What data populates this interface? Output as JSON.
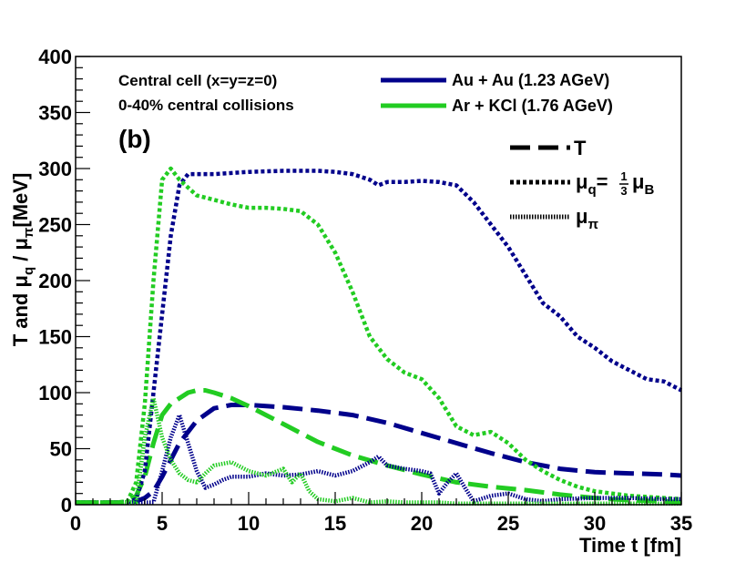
{
  "chart_data": {
    "type": "line",
    "title": "",
    "panel_label": "(b)",
    "xlabel": "Time t [fm]",
    "ylabel": "T and μq / μπ[MeV]",
    "xlim": [
      0,
      35
    ],
    "ylim": [
      0,
      400
    ],
    "x_ticks": [
      0,
      5,
      10,
      15,
      20,
      25,
      30,
      35
    ],
    "y_ticks": [
      0,
      50,
      100,
      150,
      200,
      250,
      300,
      350,
      400
    ],
    "x_tick_labels": [
      "0",
      "5",
      "10",
      "15",
      "20",
      "25",
      "30",
      "35"
    ],
    "y_tick_labels": [
      "0",
      "50",
      "100",
      "150",
      "200",
      "250",
      "300",
      "350",
      "400"
    ],
    "annotations": [
      "Central cell (x=y=z=0)",
      "0-40% central collisions"
    ],
    "legend_systems": [
      {
        "label": "Au + Au (1.23 AGeV)",
        "color": "#00008b"
      },
      {
        "label": "Ar + KCl (1.76 AGeV)",
        "color": "#22cc22"
      }
    ],
    "legend_styles": [
      {
        "key": "T",
        "label": "T",
        "dash": "dashed"
      },
      {
        "key": "mu_q",
        "label": "μq= 1/3 μB",
        "dash": "dotted"
      },
      {
        "key": "mu_pi",
        "label": "μπ",
        "dash": "fine-dotted"
      }
    ],
    "legend_muq": {
      "mu": "μ",
      "sub_q": "q",
      "equals": "=",
      "frac_num": "1",
      "frac_den": "3",
      "sub_B": "B"
    },
    "legend_mupi": {
      "mu": "μ",
      "sub_pi": "π"
    },
    "ylabel_parts": {
      "pre": "T and ",
      "mu1": "μ",
      "sub1": "q",
      "mid": " / ",
      "mu2": "μ",
      "sub2": "π",
      "post": "[MeV]"
    },
    "series": [
      {
        "name": "Au + Au T",
        "system": "Au + Au (1.23 AGeV)",
        "quantity": "T",
        "color": "#00008b",
        "dash": "dashed",
        "x": [
          0,
          3,
          3.5,
          4,
          4.5,
          5,
          5.5,
          6,
          7,
          8,
          9,
          10,
          12,
          14,
          16,
          18,
          20,
          22,
          24,
          26,
          28,
          30,
          32,
          34,
          35
        ],
        "y": [
          2,
          2,
          3,
          6,
          12,
          25,
          40,
          55,
          75,
          86,
          89,
          89,
          87,
          84,
          80,
          73,
          64,
          55,
          46,
          38,
          32,
          29,
          28,
          27,
          26
        ]
      },
      {
        "name": "Ar + KCl T",
        "system": "Ar + KCl (1.76 AGeV)",
        "quantity": "T",
        "color": "#22cc22",
        "dash": "dashed",
        "x": [
          0,
          2.5,
          3,
          3.5,
          4,
          4.5,
          5,
          5.5,
          6,
          6.5,
          7,
          7.5,
          8,
          9,
          10,
          11,
          12,
          13,
          14,
          15,
          16,
          18,
          20,
          22,
          24,
          26,
          28,
          30,
          32,
          34,
          35
        ],
        "y": [
          2,
          2,
          3,
          8,
          25,
          55,
          80,
          90,
          95,
          100,
          102,
          102,
          100,
          95,
          88,
          80,
          72,
          64,
          56,
          50,
          44,
          35,
          27,
          20,
          16,
          13,
          9,
          6,
          4,
          3,
          2
        ]
      },
      {
        "name": "Au + Au mu_q",
        "system": "Au + Au (1.23 AGeV)",
        "quantity": "mu_q",
        "color": "#00008b",
        "dash": "dotted",
        "x": [
          0,
          3,
          3.5,
          4,
          4.5,
          5,
          5.5,
          6,
          6.5,
          7,
          8,
          10,
          12,
          14,
          15,
          16,
          17,
          17.5,
          18,
          19,
          20,
          21,
          22,
          23,
          24,
          25,
          26,
          27,
          28,
          29,
          30,
          31,
          32,
          33,
          34,
          35
        ],
        "y": [
          2,
          2,
          5,
          30,
          100,
          170,
          240,
          285,
          295,
          295,
          295,
          297,
          298,
          298,
          297,
          295,
          290,
          285,
          288,
          288,
          289,
          288,
          285,
          270,
          250,
          230,
          205,
          180,
          168,
          150,
          140,
          128,
          120,
          112,
          110,
          102
        ]
      },
      {
        "name": "Ar + KCl mu_q",
        "system": "Ar + KCl (1.76 AGeV)",
        "quantity": "mu_q",
        "color": "#22cc22",
        "dash": "dotted",
        "x": [
          0,
          2.5,
          3,
          3.5,
          4,
          4.5,
          5,
          5.5,
          6,
          7,
          8,
          9,
          10,
          11,
          12,
          13,
          14,
          15,
          16,
          17,
          18,
          19,
          20,
          21,
          22,
          23,
          24,
          25,
          26,
          27,
          28,
          29,
          30,
          32,
          34,
          35
        ],
        "y": [
          2,
          2,
          3,
          20,
          90,
          200,
          290,
          300,
          290,
          276,
          272,
          268,
          265,
          265,
          264,
          262,
          250,
          225,
          190,
          150,
          130,
          118,
          112,
          95,
          70,
          62,
          65,
          55,
          40,
          30,
          22,
          16,
          12,
          8,
          6,
          5
        ]
      },
      {
        "name": "Au + Au mu_pi",
        "system": "Au + Au (1.23 AGeV)",
        "quantity": "mu_pi",
        "color": "#00008b",
        "dash": "fine-dotted",
        "x": [
          0,
          4.5,
          5,
          5.5,
          6,
          6.5,
          7,
          7.5,
          8,
          8.5,
          9,
          10,
          11,
          12,
          13,
          14,
          15,
          16,
          17,
          17.5,
          18,
          19,
          20,
          20.5,
          21,
          21.5,
          22,
          22.5,
          23,
          24,
          25,
          26,
          27,
          28,
          30,
          32,
          34,
          35
        ],
        "y": [
          2,
          2,
          30,
          60,
          80,
          55,
          30,
          15,
          18,
          22,
          25,
          25,
          28,
          26,
          27,
          30,
          26,
          30,
          38,
          43,
          35,
          32,
          30,
          28,
          10,
          20,
          28,
          15,
          3,
          8,
          10,
          5,
          3,
          5,
          6,
          6,
          5,
          5
        ]
      },
      {
        "name": "Ar + KCl mu_pi",
        "system": "Ar + KCl (1.76 AGeV)",
        "quantity": "mu_pi",
        "color": "#22cc22",
        "dash": "fine-dotted",
        "x": [
          0,
          3.5,
          4,
          4.5,
          5,
          5.5,
          6,
          6.5,
          7,
          7.5,
          8,
          9,
          10,
          11,
          12,
          12.5,
          13,
          13.5,
          14,
          15,
          16,
          17,
          18,
          19,
          20,
          21,
          22,
          23,
          24,
          26,
          28,
          30,
          32,
          34,
          35
        ],
        "y": [
          2,
          2,
          60,
          95,
          60,
          40,
          28,
          22,
          20,
          28,
          35,
          38,
          30,
          26,
          32,
          20,
          28,
          12,
          5,
          3,
          6,
          2,
          3,
          2,
          2,
          2,
          1,
          1,
          1,
          1,
          1,
          1,
          1,
          1,
          1
        ]
      }
    ]
  }
}
